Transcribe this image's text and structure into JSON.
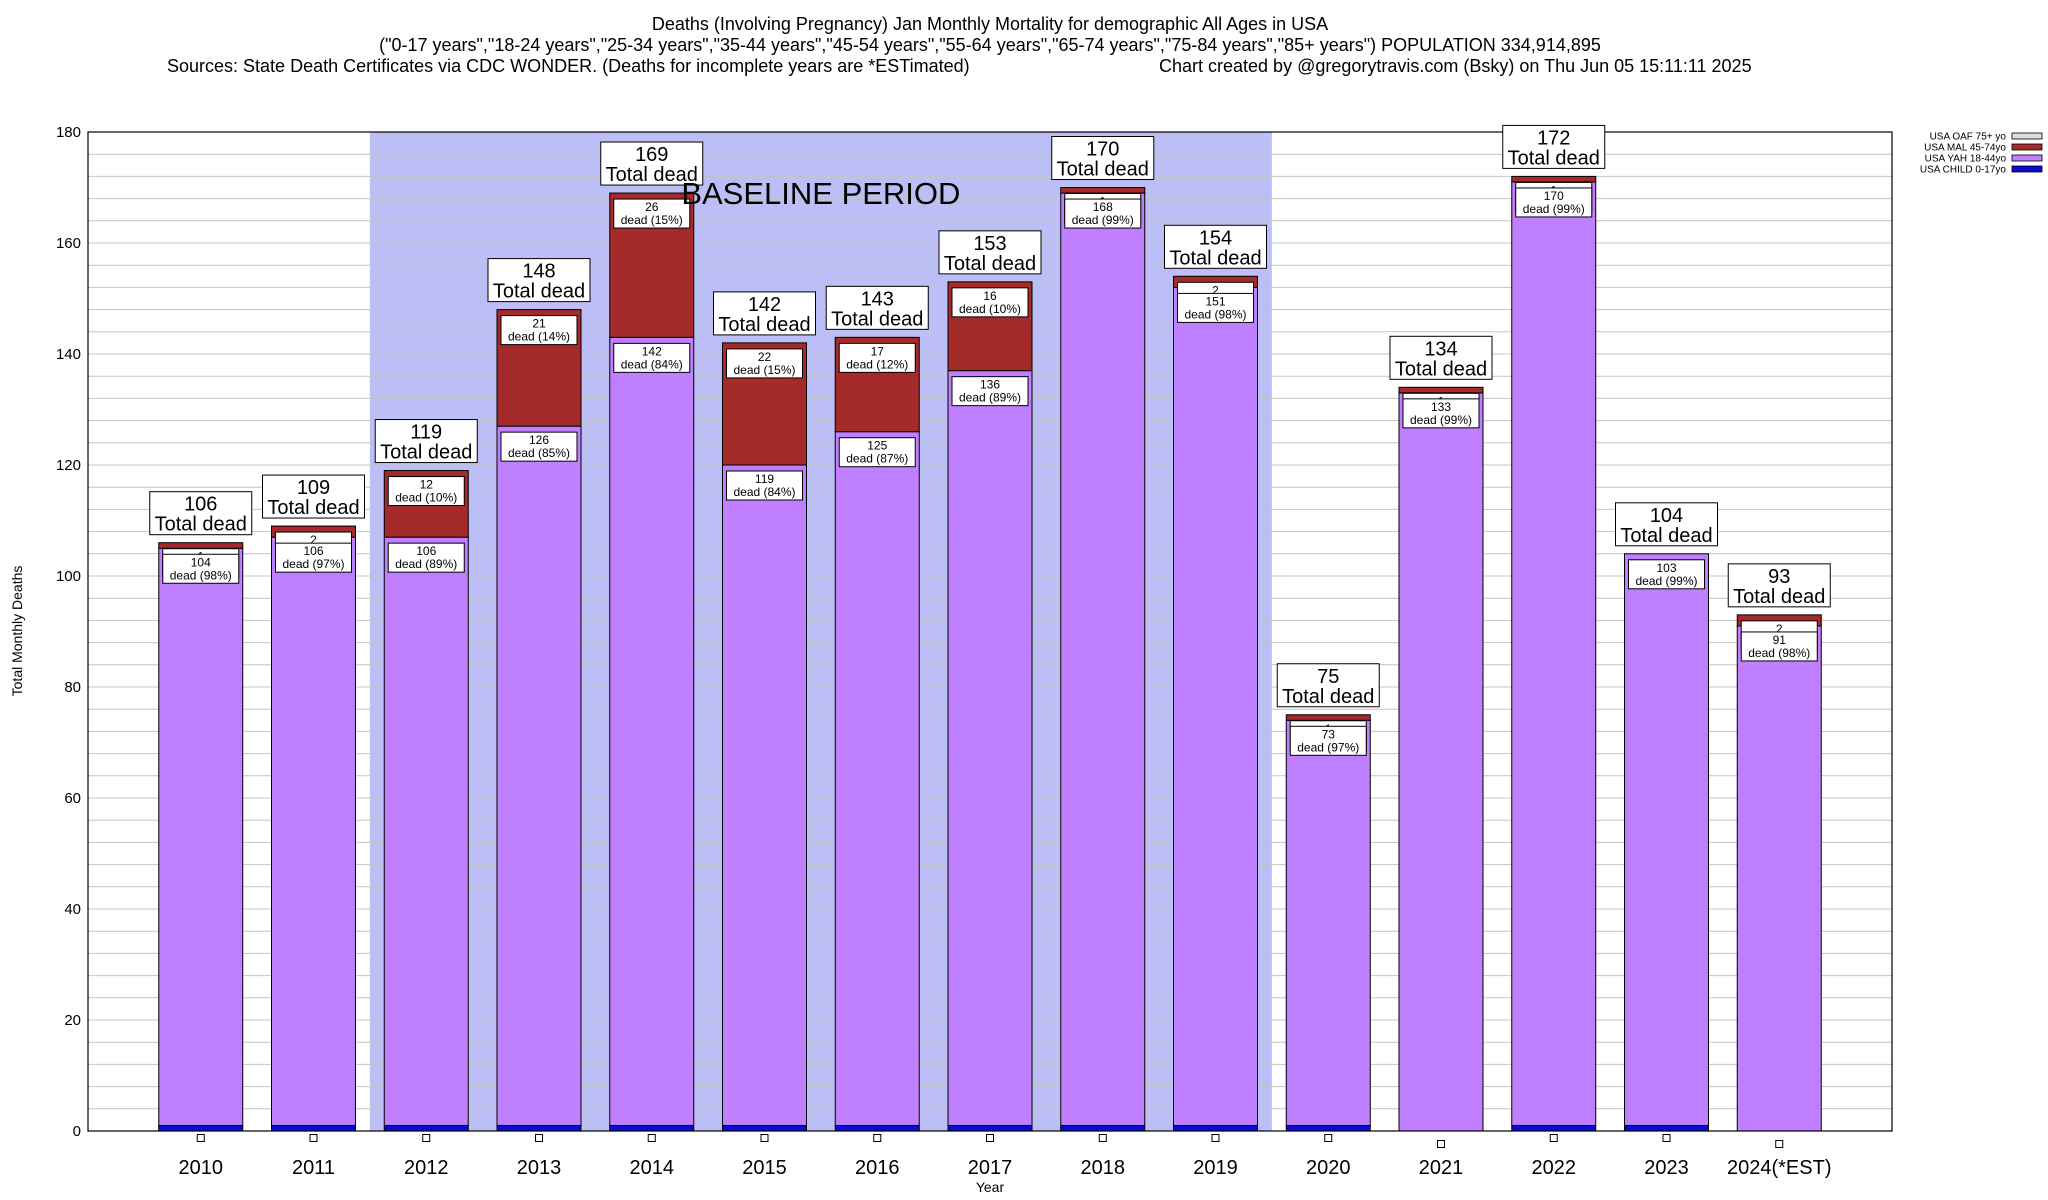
{
  "title": {
    "line1": "Deaths (Involving Pregnancy) Jan Monthly Mortality for demographic All Ages in USA",
    "line2": "(\"0-17 years\",\"18-24 years\",\"25-34 years\",\"35-44 years\",\"45-54 years\",\"55-64 years\",\"65-74 years\",\"75-84 years\",\"85+ years\") POPULATION 334,914,895",
    "sources": "Sources: State Death Certificates via CDC WONDER. (Deaths for incomplete years are *ESTimated)",
    "credit": "Chart created by @gregorytravis.com (Bsky) on Thu Jun 05 15:11:11 2025"
  },
  "colors": {
    "baseline_shading": "#bcbef6",
    "grid": "#c4c4c4"
  },
  "chart_data": {
    "type": "bar",
    "stacked": true,
    "categories": [
      "2010",
      "2011",
      "2012",
      "2013",
      "2014",
      "2015",
      "2016",
      "2017",
      "2018",
      "2019",
      "2020",
      "2021",
      "2022",
      "2023",
      "2024(*EST)"
    ],
    "x": [
      2010,
      2011,
      2012,
      2013,
      2014,
      2015,
      2016,
      2017,
      2018,
      2019,
      2020,
      2021,
      2022,
      2023,
      2024
    ],
    "xlabel": "Year",
    "ylabel": "Total Monthly Deaths",
    "xlim": [
      2009,
      2025
    ],
    "ylim": [
      0,
      180
    ],
    "yticks": [
      0,
      20,
      40,
      60,
      80,
      100,
      120,
      140,
      160,
      180
    ],
    "ygrid_step": 4,
    "grid": true,
    "legend": "top-right",
    "series": [
      {
        "name": "USA CHILD 0-17yo",
        "color": "#0a0ad2",
        "values": [
          1,
          1,
          1,
          1,
          1,
          1,
          1,
          1,
          1,
          1,
          1,
          0,
          1,
          1,
          0
        ]
      },
      {
        "name": "USA YAH 18-44yo",
        "color": "#bf7fff",
        "values": [
          104,
          106,
          106,
          126,
          142,
          119,
          125,
          136,
          168,
          151,
          73,
          133,
          170,
          103,
          91
        ],
        "pct": [
          98,
          97,
          89,
          85,
          84,
          84,
          87,
          89,
          99,
          98,
          97,
          99,
          99,
          99,
          98
        ]
      },
      {
        "name": "USA MAL 45-74yo",
        "color": "#a52a2a",
        "values": [
          1,
          2,
          12,
          21,
          26,
          22,
          17,
          16,
          1,
          2,
          1,
          1,
          1,
          0,
          2
        ],
        "pct": [
          null,
          null,
          10,
          14,
          15,
          15,
          12,
          10,
          null,
          null,
          null,
          null,
          null,
          null,
          null
        ]
      },
      {
        "name": "USA OAF 75+ yo",
        "color": "#dcdcdc",
        "values": [
          0,
          0,
          0,
          0,
          0,
          0,
          0,
          0,
          0,
          0,
          0,
          0,
          0,
          0,
          0
        ]
      }
    ],
    "totals": [
      106,
      109,
      119,
      148,
      169,
      142,
      143,
      153,
      170,
      154,
      75,
      134,
      172,
      104,
      93
    ],
    "total_label": "Total dead",
    "segment_label_word": "dead",
    "annotation": {
      "text": "BASELINE PERIOD",
      "from": 2012,
      "to": 2019
    }
  }
}
